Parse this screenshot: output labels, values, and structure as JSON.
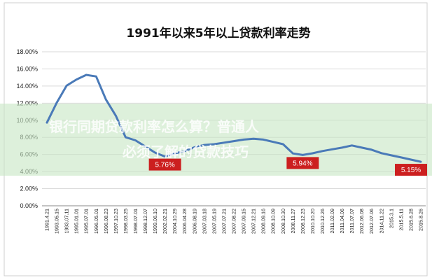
{
  "chart_data": {
    "type": "line",
    "title": "1991年以来5年以上贷款利率走势",
    "ylim": [
      0,
      18
    ],
    "yticks": [
      "0.00%",
      "2.00%",
      "4.00%",
      "6.00%",
      "8.00%",
      "10.00%",
      "12.00%",
      "14.00%",
      "16.00%",
      "18.00%"
    ],
    "grid": true,
    "categories": [
      "1991.4.21",
      "1993.05.15",
      "1993.07.11",
      "1995.01.01",
      "1995.07.01",
      "1996.05.01",
      "1996.08.23",
      "1997.10.23",
      "1998.03.25",
      "1998.07.01",
      "1998.12.07",
      "1999.06.10",
      "2002.02.21",
      "2004.10.29",
      "2006.04.28",
      "2006.08.19",
      "2007.03.18",
      "2007.05.19",
      "2007.07.21",
      "2007.08.22",
      "2007.09.15",
      "2007.12.21",
      "2008.09.16",
      "2008.10.09",
      "2008.10.30",
      "2008.11.27",
      "2008.12.23",
      "2010.10.20",
      "2010.12.26",
      "2011.02.09",
      "2011.04.06",
      "2011.07.07",
      "2012.06.08",
      "2012.07.06",
      "2014.11.22",
      "2015.3.1",
      "2015.5.11",
      "2015.6.28",
      "2015.8.26"
    ],
    "series": [
      {
        "color": "#4a7ab8",
        "values": [
          9.72,
          12.06,
          14.04,
          14.76,
          15.3,
          15.12,
          12.42,
          10.53,
          8.01,
          7.65,
          6.93,
          6.21,
          5.76,
          6.12,
          6.39,
          6.84,
          7.11,
          7.2,
          7.38,
          7.56,
          7.74,
          7.83,
          7.74,
          7.47,
          7.2,
          6.12,
          5.94,
          6.14,
          6.4,
          6.6,
          6.8,
          7.05,
          6.8,
          6.55,
          6.15,
          5.9,
          5.65,
          5.4,
          5.15
        ]
      }
    ],
    "annotations": [
      {
        "label": "5.76%",
        "category": "2002.02.21",
        "color": "#cc1f1f"
      },
      {
        "label": "5.94%",
        "category": "2008.12.23",
        "color": "#cc1f1f"
      },
      {
        "label": "5.15%",
        "category": "2015.8.26",
        "color": "#cc1f1f"
      }
    ]
  },
  "overlay": {
    "line1": "银行同期贷款利率怎么算？普通人",
    "line2": "必须了解的贷款技巧",
    "band_color": "#c6e6c3"
  }
}
